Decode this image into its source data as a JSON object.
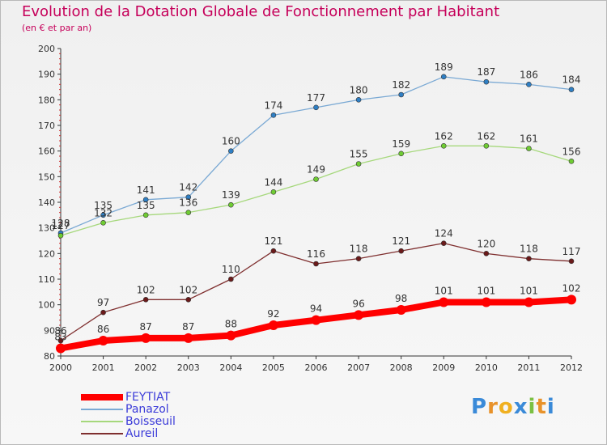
{
  "header": {
    "title": "Evolution de la Dotation Globale de Fonctionnement par Habitant",
    "subtitle": "(en € et par an)"
  },
  "logo": {
    "text": "Proxiti",
    "letter_colors": [
      "#3a8ad8",
      "#e8922a",
      "#f0b020",
      "#3a8ad8",
      "#7bc043",
      "#e8922a",
      "#3a8ad8"
    ]
  },
  "chart_data": {
    "type": "line",
    "title": "Evolution de la Dotation Globale de Fonctionnement par Habitant",
    "subtitle": "(en € et par an)",
    "xlabel": "",
    "ylabel": "",
    "categories": [
      "2000",
      "2001",
      "2002",
      "2003",
      "2004",
      "2005",
      "2006",
      "2007",
      "2008",
      "2009",
      "2010",
      "2011",
      "2012"
    ],
    "ylim": [
      80,
      200
    ],
    "yticks": [
      80,
      90,
      100,
      110,
      120,
      130,
      140,
      150,
      160,
      170,
      180,
      190,
      200
    ],
    "grid": false,
    "legend_position": "bottom-left",
    "series": [
      {
        "name": "FEYTIAT",
        "color": "#ff0000",
        "marker": "#ff0000",
        "values": [
          83,
          86,
          87,
          87,
          88,
          92,
          94,
          96,
          98,
          101,
          101,
          101,
          102
        ]
      },
      {
        "name": "Panazol",
        "color": "#7aa9d4",
        "marker": "#2f7fc4",
        "values": [
          128,
          135,
          141,
          142,
          160,
          174,
          177,
          180,
          182,
          189,
          187,
          186,
          184
        ]
      },
      {
        "name": "Boisseuil",
        "color": "#a6d87c",
        "marker": "#6fcc33",
        "values": [
          127,
          132,
          135,
          136,
          139,
          144,
          149,
          155,
          159,
          162,
          162,
          161,
          156
        ]
      },
      {
        "name": "Aureil",
        "color": "#7f2f2f",
        "marker": "#6b1a1a",
        "values": [
          86,
          97,
          102,
          102,
          110,
          121,
          116,
          118,
          121,
          124,
          120,
          118,
          117
        ]
      }
    ]
  }
}
